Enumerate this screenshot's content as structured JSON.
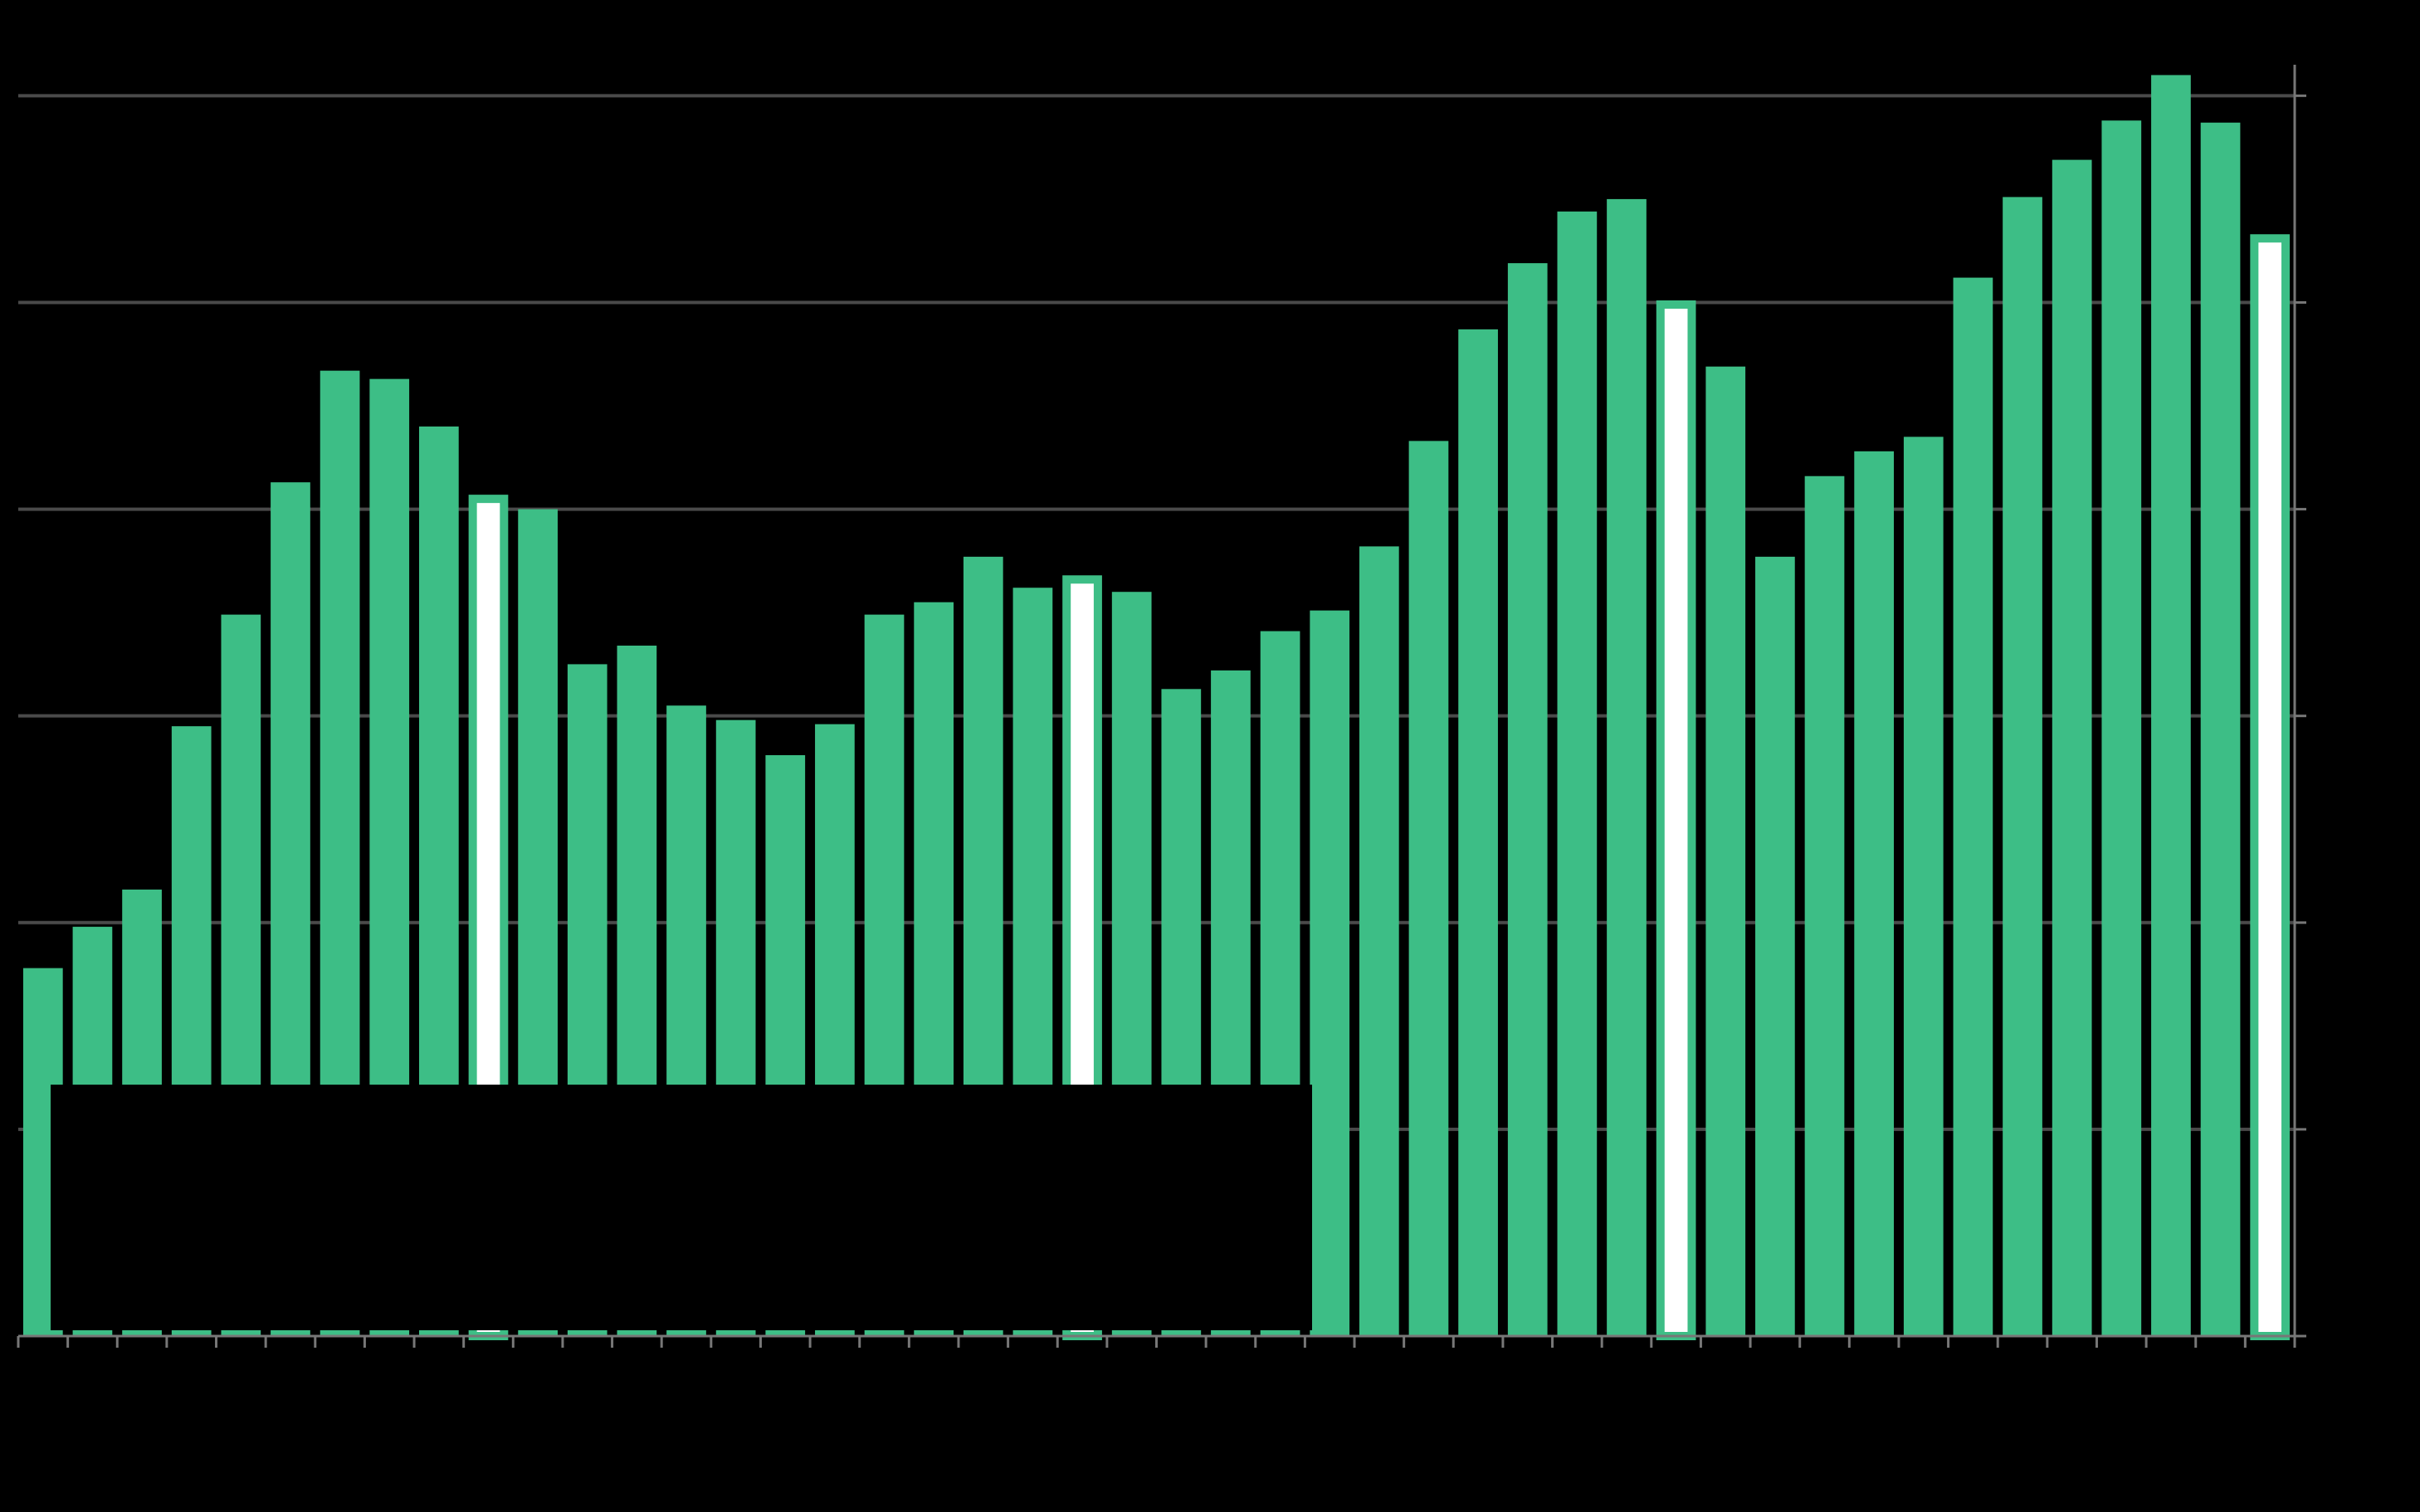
{
  "chart_data": {
    "type": "bar",
    "categories": [
      null,
      null,
      null,
      null,
      null,
      null,
      null,
      null,
      null,
      null,
      null,
      null,
      null,
      null,
      null,
      null,
      null,
      null,
      null,
      null,
      null,
      null,
      null,
      null,
      null,
      null,
      null,
      null,
      null,
      null,
      null,
      null,
      null,
      null,
      null,
      null,
      null,
      null,
      null,
      null,
      null,
      null,
      null,
      null,
      null,
      null
    ],
    "values": [
      1.78,
      1.98,
      2.16,
      2.95,
      3.49,
      4.13,
      4.67,
      4.63,
      4.4,
      4.07,
      4.0,
      3.25,
      3.34,
      3.05,
      2.98,
      2.81,
      2.96,
      3.49,
      3.55,
      3.77,
      3.62,
      3.68,
      3.6,
      3.13,
      3.22,
      3.41,
      3.51,
      3.82,
      4.33,
      4.87,
      5.19,
      5.44,
      5.5,
      5.01,
      4.69,
      3.77,
      4.16,
      4.28,
      4.35,
      5.12,
      5.51,
      5.69,
      5.88,
      6.1,
      5.87,
      5.33
    ],
    "color": "#3dbe86",
    "bar_fills": [
      "#3dbe86",
      "#3dbe86",
      "#3dbe86",
      "#3dbe86",
      "#3dbe86",
      "#3dbe86",
      "#3dbe86",
      "#3dbe86",
      "#3dbe86",
      "#ffffff",
      "#3dbe86",
      "#3dbe86",
      "#3dbe86",
      "#3dbe86",
      "#3dbe86",
      "#3dbe86",
      "#3dbe86",
      "#3dbe86",
      "#3dbe86",
      "#3dbe86",
      "#3dbe86",
      "#ffffff",
      "#3dbe86",
      "#3dbe86",
      "#3dbe86",
      "#3dbe86",
      "#3dbe86",
      "#3dbe86",
      "#3dbe86",
      "#3dbe86",
      "#3dbe86",
      "#3dbe86",
      "#3dbe86",
      "#ffffff",
      "#3dbe86",
      "#3dbe86",
      "#3dbe86",
      "#3dbe86",
      "#3dbe86",
      "#3dbe86",
      "#3dbe86",
      "#3dbe86",
      "#3dbe86",
      "#3dbe86",
      "#3dbe86",
      "#ffffff"
    ],
    "ylim": [
      0,
      6.15
    ],
    "yticks": [
      0,
      1,
      2,
      3,
      4,
      5,
      6
    ],
    "grid": true
  }
}
